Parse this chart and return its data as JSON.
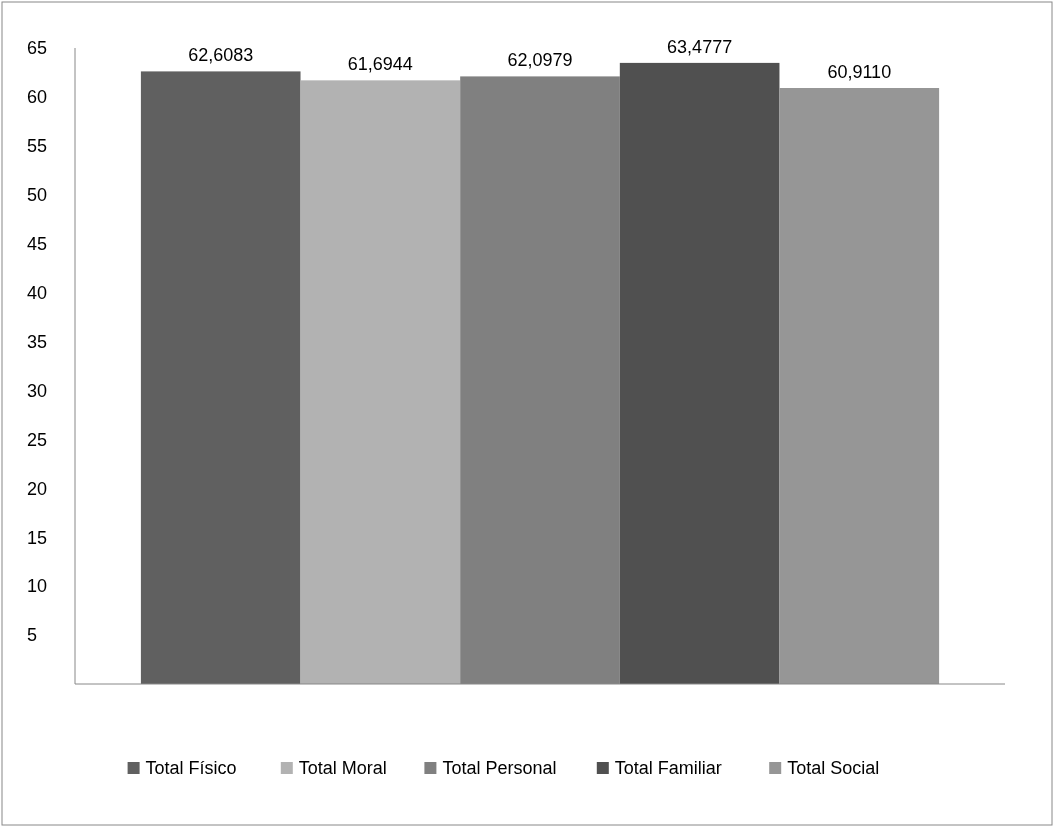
{
  "chart_data": {
    "type": "bar",
    "categories": [
      null
    ],
    "series": [
      {
        "name": "Total Físico",
        "color": "#606060",
        "values": [
          62.6083
        ],
        "value_labels": [
          "62,6083"
        ]
      },
      {
        "name": "Total Moral",
        "color": "#b2b2b2",
        "values": [
          61.6944
        ],
        "value_labels": [
          "61,6944"
        ]
      },
      {
        "name": "Total Personal",
        "color": "#808080",
        "values": [
          62.0979
        ],
        "value_labels": [
          "62,0979"
        ]
      },
      {
        "name": "Total Familiar",
        "color": "#505050",
        "values": [
          63.4777
        ],
        "value_labels": [
          "63,4777"
        ]
      },
      {
        "name": "Total Social",
        "color": "#969696",
        "values": [
          60.911
        ],
        "value_labels": [
          "60,9110"
        ]
      }
    ],
    "ylim": [
      0,
      65
    ],
    "yticks": [
      5,
      10,
      15,
      20,
      25,
      30,
      35,
      40,
      45,
      50,
      55,
      60,
      65
    ],
    "grid": false,
    "legend": "bottom"
  }
}
